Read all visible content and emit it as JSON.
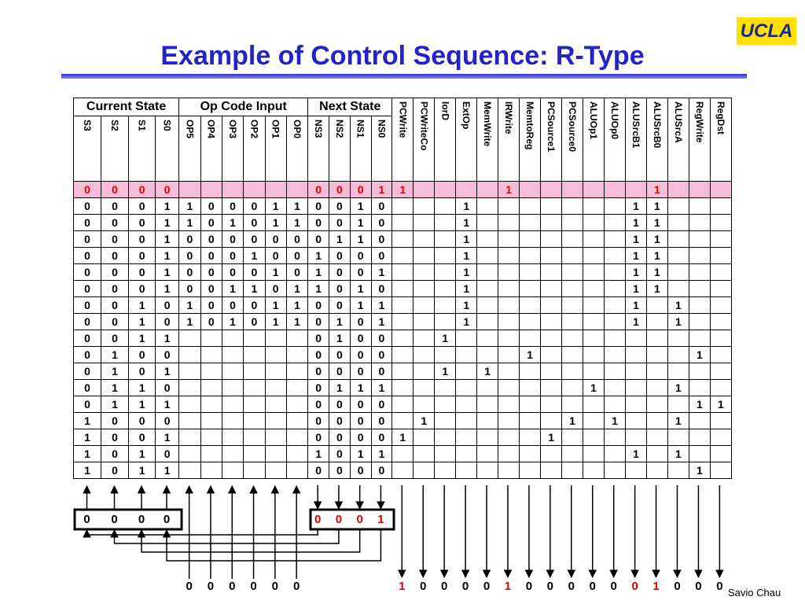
{
  "header": {
    "logo": "UCLA",
    "title": "Example of Control Sequence: R-Type"
  },
  "table": {
    "groups": [
      "Current State",
      "Op Code Input",
      "Next State"
    ],
    "columns": [
      "S3",
      "S2",
      "S1",
      "S0",
      "OP5",
      "OP4",
      "OP3",
      "OP2",
      "OP1",
      "OP0",
      "NS3",
      "NS2",
      "NS1",
      "NS0",
      "PCWrite",
      "PCWriteCo",
      "IorD",
      "ExtOp",
      "MemWrite",
      "IRWrite",
      "MemtoReg",
      "PCSource1",
      "PCSource0",
      "ALUOp1",
      "ALUOp0",
      "ALUSrcB1",
      "ALUSrcB0",
      "ALUSrcA",
      "RegWrite",
      "RegDst"
    ],
    "rows": [
      [
        0,
        0,
        0,
        0,
        null,
        null,
        null,
        null,
        null,
        null,
        0,
        0,
        0,
        1,
        1,
        null,
        null,
        null,
        null,
        1,
        null,
        null,
        null,
        null,
        null,
        null,
        1,
        null,
        null,
        null
      ],
      [
        0,
        0,
        0,
        1,
        1,
        0,
        0,
        0,
        1,
        1,
        0,
        0,
        1,
        0,
        null,
        null,
        null,
        1,
        null,
        null,
        null,
        null,
        null,
        null,
        null,
        1,
        1,
        null,
        null,
        null
      ],
      [
        0,
        0,
        0,
        1,
        1,
        0,
        1,
        0,
        1,
        1,
        0,
        0,
        1,
        0,
        null,
        null,
        null,
        1,
        null,
        null,
        null,
        null,
        null,
        null,
        null,
        1,
        1,
        null,
        null,
        null
      ],
      [
        0,
        0,
        0,
        1,
        0,
        0,
        0,
        0,
        0,
        0,
        0,
        1,
        1,
        0,
        null,
        null,
        null,
        1,
        null,
        null,
        null,
        null,
        null,
        null,
        null,
        1,
        1,
        null,
        null,
        null
      ],
      [
        0,
        0,
        0,
        1,
        0,
        0,
        0,
        1,
        0,
        0,
        1,
        0,
        0,
        0,
        null,
        null,
        null,
        1,
        null,
        null,
        null,
        null,
        null,
        null,
        null,
        1,
        1,
        null,
        null,
        null
      ],
      [
        0,
        0,
        0,
        1,
        0,
        0,
        0,
        0,
        1,
        0,
        1,
        0,
        0,
        1,
        null,
        null,
        null,
        1,
        null,
        null,
        null,
        null,
        null,
        null,
        null,
        1,
        1,
        null,
        null,
        null
      ],
      [
        0,
        0,
        0,
        1,
        0,
        0,
        1,
        1,
        0,
        1,
        1,
        0,
        1,
        0,
        null,
        null,
        null,
        1,
        null,
        null,
        null,
        null,
        null,
        null,
        null,
        1,
        1,
        null,
        null,
        null
      ],
      [
        0,
        0,
        1,
        0,
        1,
        0,
        0,
        0,
        1,
        1,
        0,
        0,
        1,
        1,
        null,
        null,
        null,
        1,
        null,
        null,
        null,
        null,
        null,
        null,
        null,
        1,
        null,
        1,
        null,
        null
      ],
      [
        0,
        0,
        1,
        0,
        1,
        0,
        1,
        0,
        1,
        1,
        0,
        1,
        0,
        1,
        null,
        null,
        null,
        1,
        null,
        null,
        null,
        null,
        null,
        null,
        null,
        1,
        null,
        1,
        null,
        null
      ],
      [
        0,
        0,
        1,
        1,
        null,
        null,
        null,
        null,
        null,
        null,
        0,
        1,
        0,
        0,
        null,
        null,
        1,
        null,
        null,
        null,
        null,
        null,
        null,
        null,
        null,
        null,
        null,
        null,
        null,
        null
      ],
      [
        0,
        1,
        0,
        0,
        null,
        null,
        null,
        null,
        null,
        null,
        0,
        0,
        0,
        0,
        null,
        null,
        null,
        null,
        null,
        null,
        1,
        null,
        null,
        null,
        null,
        null,
        null,
        null,
        1,
        null
      ],
      [
        0,
        1,
        0,
        1,
        null,
        null,
        null,
        null,
        null,
        null,
        0,
        0,
        0,
        0,
        null,
        null,
        1,
        null,
        1,
        null,
        null,
        null,
        null,
        null,
        null,
        null,
        null,
        null,
        null,
        null
      ],
      [
        0,
        1,
        1,
        0,
        null,
        null,
        null,
        null,
        null,
        null,
        0,
        1,
        1,
        1,
        null,
        null,
        null,
        null,
        null,
        null,
        null,
        null,
        null,
        1,
        null,
        null,
        null,
        1,
        null,
        null
      ],
      [
        0,
        1,
        1,
        1,
        null,
        null,
        null,
        null,
        null,
        null,
        0,
        0,
        0,
        0,
        null,
        null,
        null,
        null,
        null,
        null,
        null,
        null,
        null,
        null,
        null,
        null,
        null,
        null,
        1,
        1
      ],
      [
        1,
        0,
        0,
        0,
        null,
        null,
        null,
        null,
        null,
        null,
        0,
        0,
        0,
        0,
        null,
        1,
        null,
        null,
        null,
        null,
        null,
        null,
        1,
        null,
        1,
        null,
        null,
        1,
        null,
        null
      ],
      [
        1,
        0,
        0,
        1,
        null,
        null,
        null,
        null,
        null,
        null,
        0,
        0,
        0,
        0,
        1,
        null,
        null,
        null,
        null,
        null,
        null,
        1,
        null,
        null,
        null,
        null,
        null,
        null,
        null,
        null
      ],
      [
        1,
        0,
        1,
        0,
        null,
        null,
        null,
        null,
        null,
        null,
        1,
        0,
        1,
        1,
        null,
        null,
        null,
        null,
        null,
        null,
        null,
        null,
        null,
        null,
        null,
        1,
        null,
        1,
        null,
        null
      ],
      [
        1,
        0,
        1,
        1,
        null,
        null,
        null,
        null,
        null,
        null,
        0,
        0,
        0,
        0,
        null,
        null,
        null,
        null,
        null,
        null,
        null,
        null,
        null,
        null,
        null,
        null,
        null,
        null,
        1,
        null
      ]
    ]
  },
  "current_state": [
    0,
    0,
    0,
    0
  ],
  "next_state": [
    0,
    0,
    0,
    1
  ],
  "opcode": [
    0,
    0,
    0,
    0,
    0,
    0
  ],
  "control_outputs": [
    1,
    0,
    0,
    0,
    0,
    1,
    0,
    0,
    0,
    0,
    0,
    0,
    1,
    0,
    0,
    0
  ],
  "footer": "Savio Chau"
}
